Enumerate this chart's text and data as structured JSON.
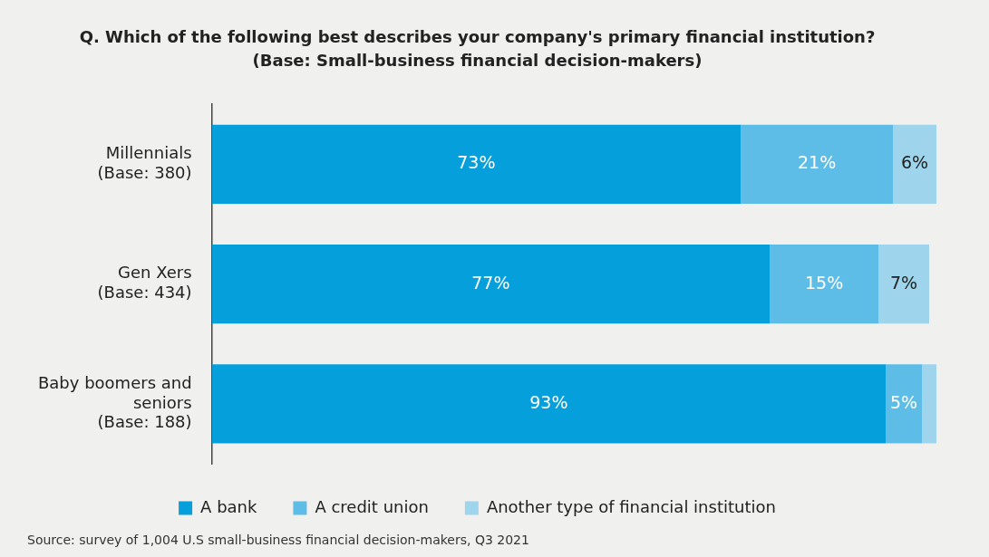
{
  "chart_data": {
    "type": "bar",
    "orientation": "horizontal",
    "stacked": true,
    "title": "Q. Which of the following best describes your company's primary financial institution?",
    "subtitle": "(Base: Small-business financial decision-makers)",
    "categories": [
      "Millennials\n(Base: 380)",
      "Gen Xers\n(Base: 434)",
      "Baby boomers and\nseniors\n(Base: 188)"
    ],
    "series": [
      {
        "name": "A bank",
        "color": "#059fdc",
        "values": [
          73,
          77,
          93
        ],
        "value_labels": [
          "73%",
          "77%",
          "93%"
        ]
      },
      {
        "name": "A credit union",
        "color": "#5dbde6",
        "values": [
          21,
          15,
          5
        ],
        "value_labels": [
          "21%",
          "15%",
          "5%"
        ]
      },
      {
        "name": "Another type of financial institution",
        "color": "#9fd5ec",
        "values": [
          6,
          7,
          2
        ],
        "value_labels": [
          "6%",
          "7%",
          null
        ]
      }
    ],
    "legend": "bottom",
    "grid": false,
    "tick_labels": "y",
    "annotations": [
      "Source: survey of 1,004 U.S small-business financial decision-makers, Q3 2021"
    ]
  }
}
